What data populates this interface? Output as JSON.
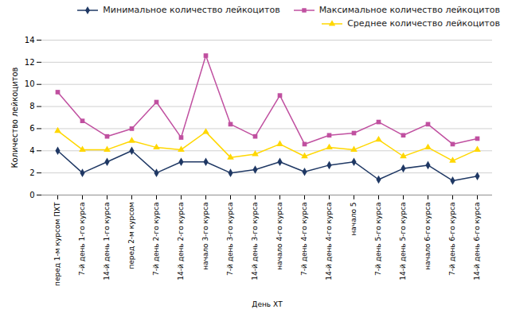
{
  "chart_data": {
    "type": "line",
    "xlabel": "День ХТ",
    "ylabel": "Количество лейкоцитов",
    "categories": [
      "перед 1-м курсом ПХТ",
      "7-й день 1-го курса",
      "14-й день 1-го курса",
      "перед 2-м курсом",
      "7-й день 2-го курса",
      "14-й день 2-го курса",
      "начало 3-го курса",
      "7-й день 3-го курса",
      "14-й день 3-го курса",
      "начало 4-го курса",
      "7-й день 4-го курса",
      "14-й день 4-го курса",
      "начало 5",
      "7-й день 5-го курса",
      "14-й день 5-го курса",
      "начало 6-го курса",
      "7-й день 6-го курса",
      "14-й день 6-го курса"
    ],
    "series": [
      {
        "name": "Минимальное количество лейкоцитов",
        "color": "#1f3864",
        "marker": "diamond",
        "values": [
          4.0,
          2.0,
          3.0,
          4.0,
          2.0,
          3.0,
          3.0,
          2.0,
          2.3,
          3.0,
          2.1,
          2.7,
          3.0,
          1.4,
          2.4,
          2.7,
          1.3,
          1.7
        ]
      },
      {
        "name": "Максимальное количество лейкоцитов",
        "color": "#c050a0",
        "marker": "square",
        "values": [
          9.3,
          6.7,
          5.3,
          6.0,
          8.4,
          5.2,
          12.6,
          6.4,
          5.3,
          9.0,
          4.6,
          5.4,
          5.6,
          6.6,
          5.4,
          6.4,
          4.6,
          5.1
        ]
      },
      {
        "name": "Среднее количество лейкоцитов",
        "color": "#ffd700",
        "marker": "triangle",
        "values": [
          5.8,
          4.1,
          4.1,
          4.9,
          4.3,
          4.1,
          5.7,
          3.4,
          3.7,
          4.6,
          3.5,
          4.3,
          4.1,
          5.0,
          3.5,
          4.3,
          3.1,
          4.1
        ]
      }
    ],
    "ylim": [
      0,
      14
    ],
    "yticks": [
      0,
      2,
      4,
      6,
      8,
      10,
      12,
      14
    ],
    "grid": true,
    "legend": "upper right"
  }
}
